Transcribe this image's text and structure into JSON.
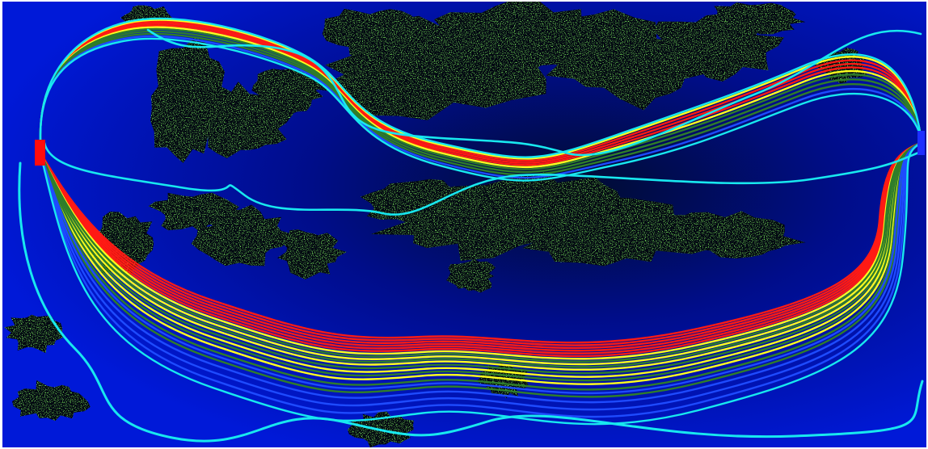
{
  "figure": {
    "colors": {
      "background": "#0019d8",
      "background_dark": "#000c30",
      "terrain_dark": "#020611",
      "terrain_green": "#34d01c",
      "source_marker_left": "#ff0c0c",
      "source_marker_right": "#1e2fff",
      "line_red": "#ff1a14",
      "line_yellow": "#ffff1e",
      "line_darkgreen": "#2f7d2a",
      "line_blue": "#1e4bff",
      "line_cyan": "#18e8ef"
    },
    "sources": [
      "source-marker-left",
      "source-marker-right"
    ],
    "line_families": [
      "red",
      "yellow",
      "dark-green",
      "blue",
      "cyan"
    ]
  }
}
